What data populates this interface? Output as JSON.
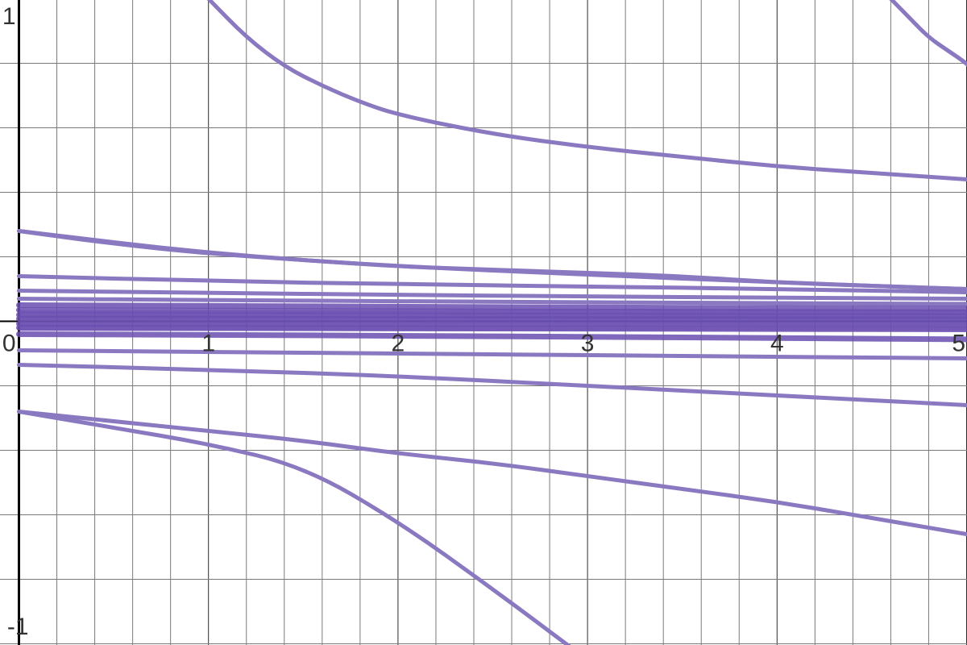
{
  "chart_data": {
    "type": "line",
    "title": "",
    "xlabel": "",
    "ylabel": "",
    "xlim": [
      -0.1,
      5
    ],
    "ylim": [
      -1,
      1
    ],
    "grid": true,
    "x_tick_labels": [
      "0",
      "1",
      "2",
      "3",
      "4",
      "5"
    ],
    "y_tick_labels": [
      "1",
      "-1"
    ],
    "colors": {
      "curve": "#8a79c0",
      "curve_dense": "#6a4fb0",
      "grid": "#7a7a7a",
      "axis": "#000000"
    },
    "series": [
      {
        "x": [
          0,
          1,
          2,
          3,
          4,
          5
        ],
        "y": [
          0.28,
          0.21,
          0.17,
          0.145,
          0.12,
          0.1
        ]
      },
      {
        "x": [
          0,
          1,
          2,
          3,
          4,
          5
        ],
        "y": [
          0.14,
          0.125,
          0.115,
          0.108,
          0.1,
          0.09
        ]
      },
      {
        "x": [
          0,
          1,
          2,
          3,
          4,
          5
        ],
        "y": [
          0.095,
          0.088,
          0.082,
          0.077,
          0.073,
          0.07
        ]
      },
      {
        "x": [
          0,
          1,
          2,
          3,
          4,
          5
        ],
        "y": [
          0.07,
          0.066,
          0.062,
          0.059,
          0.056,
          0.054
        ]
      },
      {
        "x": [
          0,
          1,
          2,
          3,
          4,
          5
        ],
        "y": [
          0.05,
          0.048,
          0.045,
          0.043,
          0.041,
          0.04
        ]
      },
      {
        "x": [
          0,
          1,
          2,
          3,
          4,
          5
        ],
        "y": [
          0.035,
          0.033,
          0.031,
          0.03,
          0.029,
          0.028
        ]
      },
      {
        "x": [
          0,
          1,
          2,
          3,
          4,
          5
        ],
        "y": [
          0.02,
          0.019,
          0.018,
          0.017,
          0.016,
          0.016
        ]
      },
      {
        "x": [
          0,
          1,
          2,
          3,
          4,
          5
        ],
        "y": [
          0.008,
          0.008,
          0.007,
          0.007,
          0.007,
          0.006
        ]
      },
      {
        "x": [
          0,
          1,
          2,
          3,
          4,
          5
        ],
        "y": [
          -0.008,
          -0.008,
          -0.008,
          -0.008,
          -0.008,
          -0.009
        ]
      },
      {
        "x": [
          0,
          1,
          2,
          3,
          4,
          5
        ],
        "y": [
          -0.02,
          -0.021,
          -0.022,
          -0.023,
          -0.024,
          -0.025
        ]
      },
      {
        "x": [
          0,
          1,
          2,
          3,
          4,
          5
        ],
        "y": [
          -0.04,
          -0.042,
          -0.045,
          -0.048,
          -0.052,
          -0.056
        ]
      },
      {
        "x": [
          0,
          1,
          2,
          3,
          4,
          5
        ],
        "y": [
          -0.09,
          -0.095,
          -0.1,
          -0.105,
          -0.11,
          -0.115
        ]
      },
      {
        "x": [
          0,
          1,
          2,
          3,
          4,
          5
        ],
        "y": [
          -0.135,
          -0.15,
          -0.17,
          -0.2,
          -0.23,
          -0.26
        ]
      },
      {
        "x": [
          0,
          0.5,
          1,
          1.5,
          2,
          2.5,
          3,
          3.5,
          4,
          4.5,
          5
        ],
        "y": [
          -0.28,
          -0.31,
          -0.34,
          -0.37,
          -0.41,
          -0.44,
          -0.48,
          -0.52,
          -0.56,
          -0.61,
          -0.66
        ]
      },
      {
        "x": [
          0,
          0.5,
          1,
          1.5,
          2,
          2.5,
          3,
          3.5,
          4,
          4.5,
          5
        ],
        "y": [
          0.28,
          0.24,
          0.21,
          0.19,
          0.17,
          0.16,
          0.15,
          0.14,
          0.12,
          0.11,
          0.1
        ]
      },
      {
        "x": [
          0,
          0.5,
          1,
          1.5,
          2,
          2.5,
          3
        ],
        "y": [
          -0.28,
          -0.33,
          -0.38,
          -0.45,
          -0.62,
          -0.83,
          -1.05
        ]
      },
      {
        "x": [
          1,
          1.2,
          1.4,
          1.6,
          1.8,
          2,
          2.5,
          3,
          3.5,
          4,
          4.5,
          5
        ],
        "y": [
          1.0,
          0.88,
          0.79,
          0.73,
          0.68,
          0.64,
          0.58,
          0.54,
          0.51,
          0.48,
          0.46,
          0.44
        ]
      },
      {
        "x": [
          4.6,
          4.7,
          4.8,
          4.9,
          5,
          5.05
        ],
        "y": [
          1.0,
          0.94,
          0.88,
          0.84,
          0.8,
          0.77
        ]
      }
    ]
  }
}
